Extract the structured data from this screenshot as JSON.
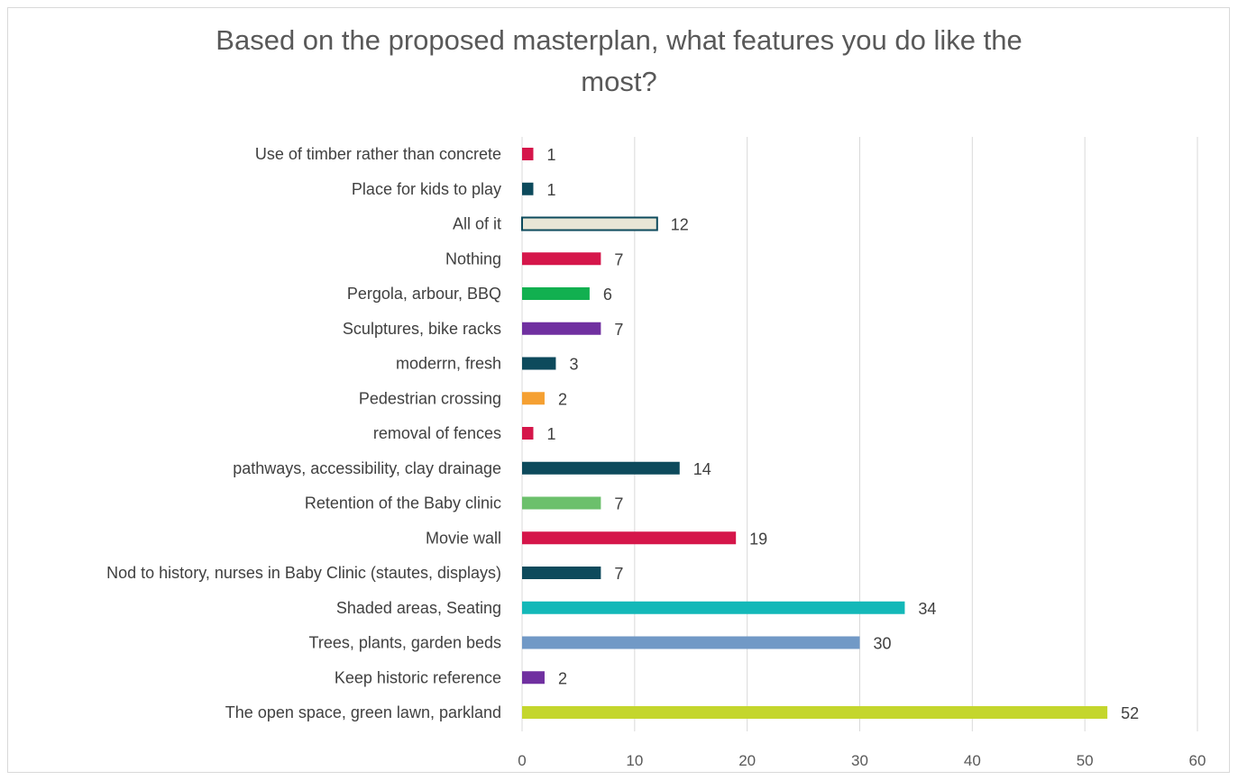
{
  "chart_data": {
    "type": "bar",
    "orientation": "horizontal",
    "title": "Based on the proposed masterplan, what features you do like the most?",
    "title_lines": [
      "Based on the proposed masterplan, what features you do like the",
      "most?"
    ],
    "categories": [
      "Use of timber rather than concrete",
      "Place for kids to play",
      "All of it",
      "Nothing",
      "Pergola, arbour, BBQ",
      "Sculptures, bike racks",
      "moderrn, fresh",
      "Pedestrian crossing",
      "removal of fences",
      "pathways, accessibility, clay drainage",
      "Retention of the Baby clinic",
      "Movie wall",
      "Nod to history, nurses in Baby Clinic (stautes, displays)",
      "Shaded areas, Seating",
      "Trees, plants, garden beds",
      "Keep historic reference",
      "The open space, green lawn, parkland"
    ],
    "values": [
      1,
      1,
      12,
      7,
      6,
      7,
      3,
      2,
      1,
      14,
      7,
      19,
      7,
      34,
      30,
      2,
      52
    ],
    "colors": [
      "#d5164a",
      "#0d4a5c",
      "#e8e6d6",
      "#d5164a",
      "#12b050",
      "#7030a0",
      "#0d4a5c",
      "#f5a032",
      "#d5164a",
      "#0d4a5c",
      "#6cc06c",
      "#d5164a",
      "#0d4a5c",
      "#13b8b8",
      "#7199c6",
      "#7030a0",
      "#c4d62d"
    ],
    "outline_colors": [
      "",
      "",
      "#0d4a5c",
      "",
      "",
      "",
      "",
      "",
      "",
      "",
      "",
      "",
      "",
      "",
      "",
      "",
      ""
    ],
    "xlim": [
      0,
      60
    ],
    "xticks": [
      0,
      10,
      20,
      30,
      40,
      50,
      60
    ],
    "grid": true,
    "xlabel": "",
    "ylabel": ""
  }
}
